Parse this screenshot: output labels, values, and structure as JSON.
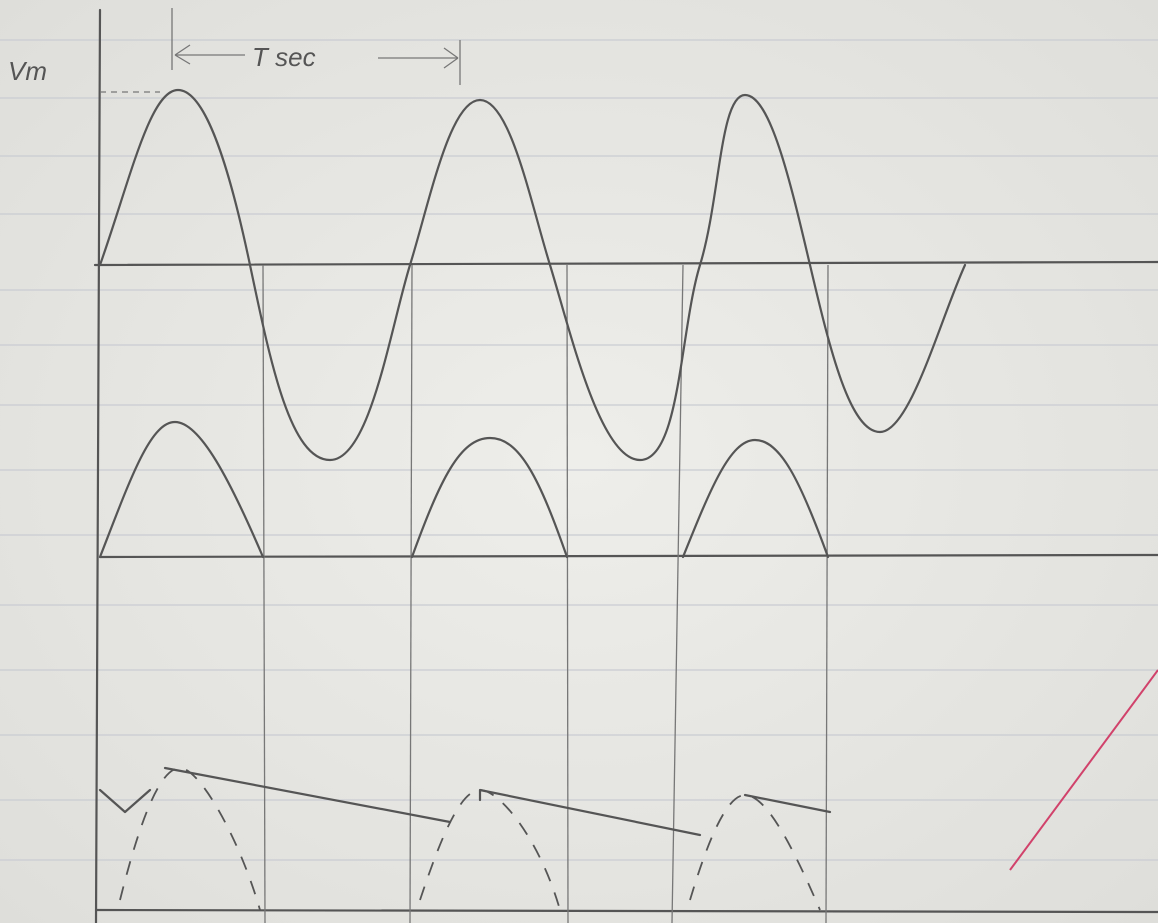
{
  "labels": {
    "vm": "Vm",
    "period": "T sec"
  }
}
